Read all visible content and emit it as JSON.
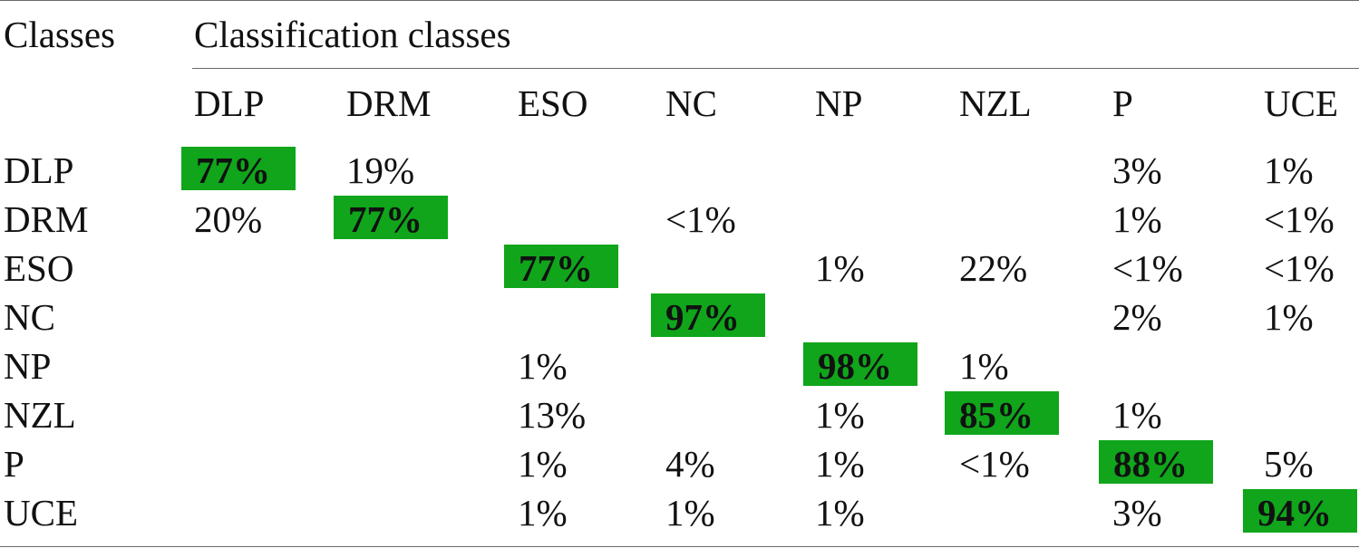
{
  "table": {
    "header": {
      "row_header_title": "Classes",
      "group_title": "Classification classes",
      "columns": [
        "DLP",
        "DRM",
        "ESO",
        "NC",
        "NP",
        "NZL",
        "P",
        "UCE"
      ]
    },
    "rows": [
      {
        "label": "DLP",
        "cells": [
          "77%",
          "19%",
          "",
          "",
          "",
          "",
          "3%",
          "1%"
        ]
      },
      {
        "label": "DRM",
        "cells": [
          "20%",
          "77%",
          "",
          "<1%",
          "",
          "",
          "1%",
          "<1%"
        ]
      },
      {
        "label": "ESO",
        "cells": [
          "",
          "",
          "77%",
          "",
          "1%",
          "22%",
          "<1%",
          "<1%"
        ]
      },
      {
        "label": "NC",
        "cells": [
          "",
          "",
          "",
          "97%",
          "",
          "",
          "2%",
          "1%"
        ]
      },
      {
        "label": "NP",
        "cells": [
          "",
          "",
          "1%",
          "",
          "98%",
          "1%",
          "",
          ""
        ]
      },
      {
        "label": "NZL",
        "cells": [
          "",
          "",
          "13%",
          "",
          "1%",
          "85%",
          "1%",
          ""
        ]
      },
      {
        "label": "P",
        "cells": [
          "",
          "",
          "1%",
          "4%",
          "1%",
          "<1%",
          "88%",
          "5%"
        ]
      },
      {
        "label": "UCE",
        "cells": [
          "",
          "",
          "1%",
          "1%",
          "1%",
          "",
          "3%",
          "94%"
        ]
      }
    ],
    "highlight_color": "#10a51b"
  }
}
